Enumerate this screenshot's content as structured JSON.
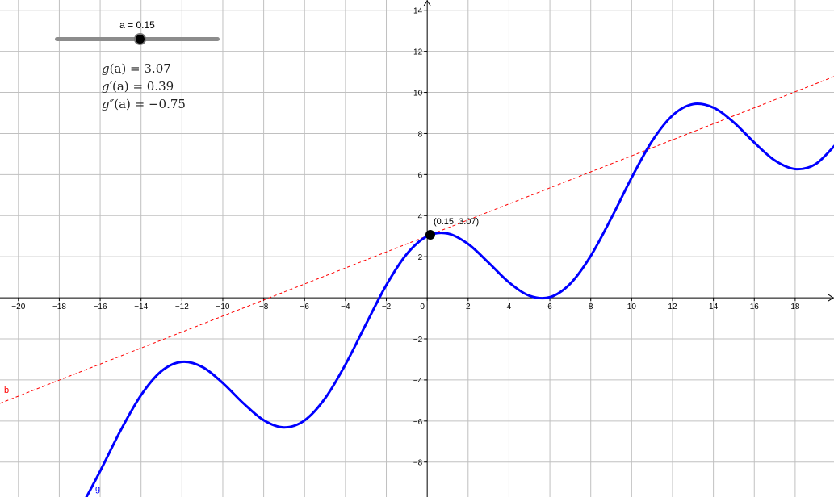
{
  "slider": {
    "label": "a = 0.15",
    "value": 0.15,
    "min": -5,
    "max": 5
  },
  "readouts": {
    "g": {
      "name": "g",
      "arg": "(a)",
      "value": "= 3.07"
    },
    "g1": {
      "name": "g′",
      "arg": "(a)",
      "value": "= 0.39"
    },
    "g2": {
      "name": "g″",
      "arg": "(a)",
      "value": "= −0.75"
    }
  },
  "chart_data": {
    "type": "line",
    "xlim": [
      -20.9,
      19.9
    ],
    "ylim": [
      -9.7,
      14.5
    ],
    "grid": true,
    "grid_step": 2,
    "x_ticks": [
      -20,
      -18,
      -16,
      -14,
      -12,
      -10,
      -8,
      -6,
      -4,
      -2,
      0,
      2,
      4,
      6,
      8,
      10,
      12,
      14,
      16,
      18
    ],
    "y_ticks": [
      -8,
      -6,
      -4,
      -2,
      2,
      4,
      6,
      8,
      10,
      12,
      14
    ],
    "series": [
      {
        "name": "g",
        "color": "#0000ff",
        "x": [
          -17,
          -16,
          -15,
          -14,
          -13,
          -12,
          -11,
          -10,
          -9,
          -8,
          -7,
          -6,
          -5,
          -4,
          -3,
          -2,
          -1,
          0,
          1,
          2,
          3,
          4,
          5,
          6,
          7,
          8,
          9,
          10,
          11,
          12,
          13,
          14,
          15,
          16,
          17,
          18,
          19,
          20
        ],
        "y": [
          -10.31,
          -8.44,
          -6.46,
          -4.74,
          -3.57,
          -3.12,
          -3.37,
          -4.15,
          -5.13,
          -5.96,
          -6.31,
          -5.97,
          -4.9,
          -3.25,
          -1.29,
          0.62,
          2.13,
          3.0,
          3.13,
          2.62,
          1.71,
          0.75,
          0.1,
          0.03,
          0.69,
          2.04,
          3.87,
          5.85,
          7.63,
          8.88,
          9.43,
          9.26,
          8.54,
          7.56,
          6.69,
          6.27,
          6.51,
          7.48
        ]
      }
    ],
    "tangent": {
      "name": "b",
      "color": "#ff0000",
      "style": "dashed",
      "point": [
        0.15,
        3.07
      ],
      "slope": 0.39
    },
    "point": {
      "x": 0.15,
      "y": 3.07,
      "label": "(0.15, 3.07)"
    }
  }
}
